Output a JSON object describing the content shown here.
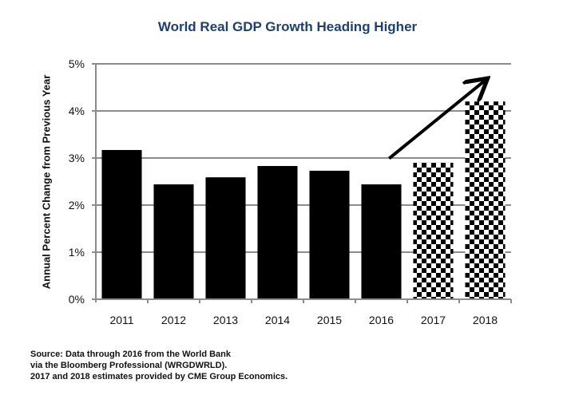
{
  "chart_data": {
    "type": "bar",
    "title": "World Real GDP Growth Heading Higher",
    "xlabel": "",
    "ylabel": "Annual Percent Change from Previous Year",
    "ylim": [
      0,
      5
    ],
    "yticks": [
      "0%",
      "1%",
      "2%",
      "3%",
      "4%",
      "5%"
    ],
    "grid": true,
    "categories": [
      "2011",
      "2012",
      "2013",
      "2014",
      "2015",
      "2016",
      "2017",
      "2018"
    ],
    "values": [
      3.17,
      2.44,
      2.59,
      2.83,
      2.73,
      2.44,
      2.9,
      4.2
    ],
    "styles": [
      "actual",
      "actual",
      "actual",
      "actual",
      "actual",
      "actual",
      "estimate",
      "estimate"
    ],
    "legend": {
      "actual": "solid black (World Bank data)",
      "estimate": "checkered (CME Group Economics estimates)"
    },
    "annotations": [
      {
        "type": "arrow",
        "direction": "up-right",
        "meaning": "growth heading higher",
        "from_category": "2016",
        "to_category": "2018"
      }
    ]
  },
  "source": [
    "Source:  Data through 2016 from the World Bank",
    "via the Bloomberg Professional (WRGDWRLD).",
    "2017 and 2018 estimates provided by CME Group Economics."
  ],
  "colors": {
    "title": "#1f3f6e",
    "bar": "#000000",
    "grid": "#8c8c8c"
  }
}
